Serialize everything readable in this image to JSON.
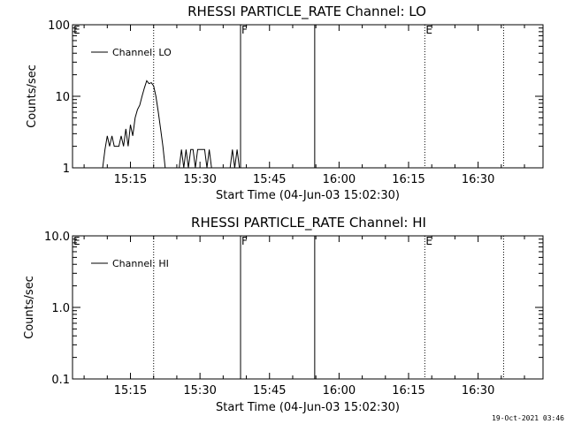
{
  "chart_data": [
    {
      "type": "line",
      "title": "RHESSI PARTICLE_RATE Channel: LO",
      "xlabel": "Start Time (04-Jun-03 15:02:30)",
      "ylabel": "Counts/sec",
      "y_scale": "log",
      "ylim": [
        1,
        100
      ],
      "xlim": [
        "15:02:30",
        "16:44:00"
      ],
      "xticks": [
        "15:15",
        "15:30",
        "15:45",
        "16:00",
        "16:15",
        "16:30"
      ],
      "yticks": [
        "1",
        "10",
        "100"
      ],
      "legend": {
        "placement": "top-left",
        "entries": [
          "Channel: LO"
        ]
      },
      "markers": [
        {
          "label": "E",
          "time": "15:02:30",
          "style": "dotted"
        },
        {
          "label": "",
          "time": "15:20:00",
          "style": "dotted"
        },
        {
          "label": "F",
          "time": "15:38:45",
          "style": "solid"
        },
        {
          "label": "",
          "time": "15:54:45",
          "style": "solid"
        },
        {
          "label": "E",
          "time": "16:18:30",
          "style": "dotted"
        },
        {
          "label": "",
          "time": "16:35:30",
          "style": "dotted"
        }
      ],
      "series": [
        {
          "name": "Channel: LO",
          "points": [
            [
              "15:09:00",
              1.0
            ],
            [
              "15:09:30",
              1.8
            ],
            [
              "15:10:00",
              2.8
            ],
            [
              "15:10:30",
              2.0
            ],
            [
              "15:11:00",
              2.8
            ],
            [
              "15:11:30",
              2.0
            ],
            [
              "15:12:00",
              2.0
            ],
            [
              "15:12:30",
              2.0
            ],
            [
              "15:13:00",
              2.8
            ],
            [
              "15:13:30",
              2.0
            ],
            [
              "15:14:00",
              3.5
            ],
            [
              "15:14:30",
              2.0
            ],
            [
              "15:15:00",
              4.0
            ],
            [
              "15:15:30",
              2.8
            ],
            [
              "15:16:00",
              5.0
            ],
            [
              "15:16:30",
              6.5
            ],
            [
              "15:17:00",
              7.5
            ],
            [
              "15:17:30",
              10.0
            ],
            [
              "15:18:00",
              13.0
            ],
            [
              "15:18:30",
              16.5
            ],
            [
              "15:19:00",
              15.0
            ],
            [
              "15:19:30",
              15.5
            ],
            [
              "15:20:00",
              14.0
            ],
            [
              "15:20:30",
              10.0
            ],
            [
              "15:21:00",
              6.0
            ],
            [
              "15:21:30",
              3.5
            ],
            [
              "15:22:00",
              2.0
            ],
            [
              "15:22:30",
              1.0
            ],
            [
              "15:25:30",
              1.0
            ],
            [
              "15:26:00",
              1.8
            ],
            [
              "15:26:30",
              1.0
            ],
            [
              "15:27:00",
              1.8
            ],
            [
              "15:27:30",
              1.0
            ],
            [
              "15:28:00",
              1.8
            ],
            [
              "15:28:30",
              1.8
            ],
            [
              "15:29:00",
              1.0
            ],
            [
              "15:29:30",
              1.8
            ],
            [
              "15:30:00",
              1.8
            ],
            [
              "15:30:30",
              1.8
            ],
            [
              "15:31:00",
              1.8
            ],
            [
              "15:31:30",
              1.0
            ],
            [
              "15:32:00",
              1.8
            ],
            [
              "15:32:30",
              1.0
            ],
            [
              "15:36:30",
              1.0
            ],
            [
              "15:37:00",
              1.8
            ],
            [
              "15:37:30",
              1.0
            ],
            [
              "15:38:00",
              1.8
            ],
            [
              "15:38:30",
              1.0
            ]
          ]
        }
      ]
    },
    {
      "type": "line",
      "title": "RHESSI PARTICLE_RATE Channel: HI",
      "xlabel": "Start Time (04-Jun-03 15:02:30)",
      "ylabel": "Counts/sec",
      "y_scale": "log",
      "ylim": [
        0.1,
        10
      ],
      "xlim": [
        "15:02:30",
        "16:44:00"
      ],
      "xticks": [
        "15:15",
        "15:30",
        "15:45",
        "16:00",
        "16:15",
        "16:30"
      ],
      "yticks": [
        "0.1",
        "1.0",
        "10.0"
      ],
      "legend": {
        "placement": "top-left",
        "entries": [
          "Channel: HI"
        ]
      },
      "markers": [
        {
          "label": "E",
          "time": "15:02:30",
          "style": "dotted"
        },
        {
          "label": "",
          "time": "15:20:00",
          "style": "dotted"
        },
        {
          "label": "F",
          "time": "15:38:45",
          "style": "solid"
        },
        {
          "label": "",
          "time": "15:54:45",
          "style": "solid"
        },
        {
          "label": "E",
          "time": "16:18:30",
          "style": "dotted"
        },
        {
          "label": "",
          "time": "16:35:30",
          "style": "dotted"
        }
      ],
      "series": [
        {
          "name": "Channel: HI",
          "points": []
        }
      ]
    }
  ],
  "footer": {
    "timestamp": "19-Oct-2021 03:46"
  }
}
